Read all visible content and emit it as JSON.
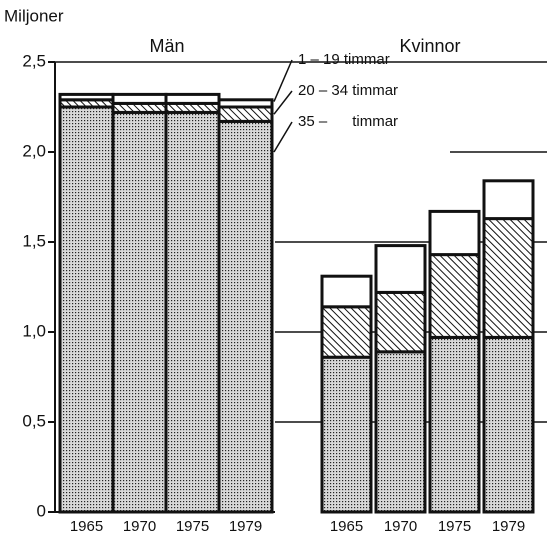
{
  "chart_data": {
    "type": "stacked_bar",
    "y_label": "Miljoner",
    "groups": [
      "Män",
      "Kvinnor"
    ],
    "categories": [
      "1965",
      "1970",
      "1975",
      "1979",
      "1965",
      "1970",
      "1975",
      "1979"
    ],
    "series": [
      {
        "name": "35 –      timmar",
        "pattern": "dots",
        "values": [
          2.25,
          2.22,
          2.22,
          2.17,
          0.86,
          0.89,
          0.97,
          0.97
        ]
      },
      {
        "name": "20 – 34 timmar",
        "pattern": "hatch",
        "values": [
          0.04,
          0.05,
          0.05,
          0.08,
          0.28,
          0.33,
          0.46,
          0.66
        ]
      },
      {
        "name": "1 – 19 timmar",
        "pattern": "none",
        "values": [
          0.03,
          0.05,
          0.05,
          0.04,
          0.17,
          0.26,
          0.24,
          0.21
        ]
      }
    ],
    "ylim": [
      0,
      2.5
    ],
    "yticks": [
      0,
      {
        "value": 0.5,
        "label": "0,5"
      },
      {
        "value": 1.0,
        "label": "1,0"
      },
      {
        "value": 1.5,
        "label": "1,5"
      },
      {
        "value": 2.0,
        "label": "2,0"
      },
      {
        "value": 2.5,
        "label": "2,5"
      }
    ],
    "grid": true
  }
}
